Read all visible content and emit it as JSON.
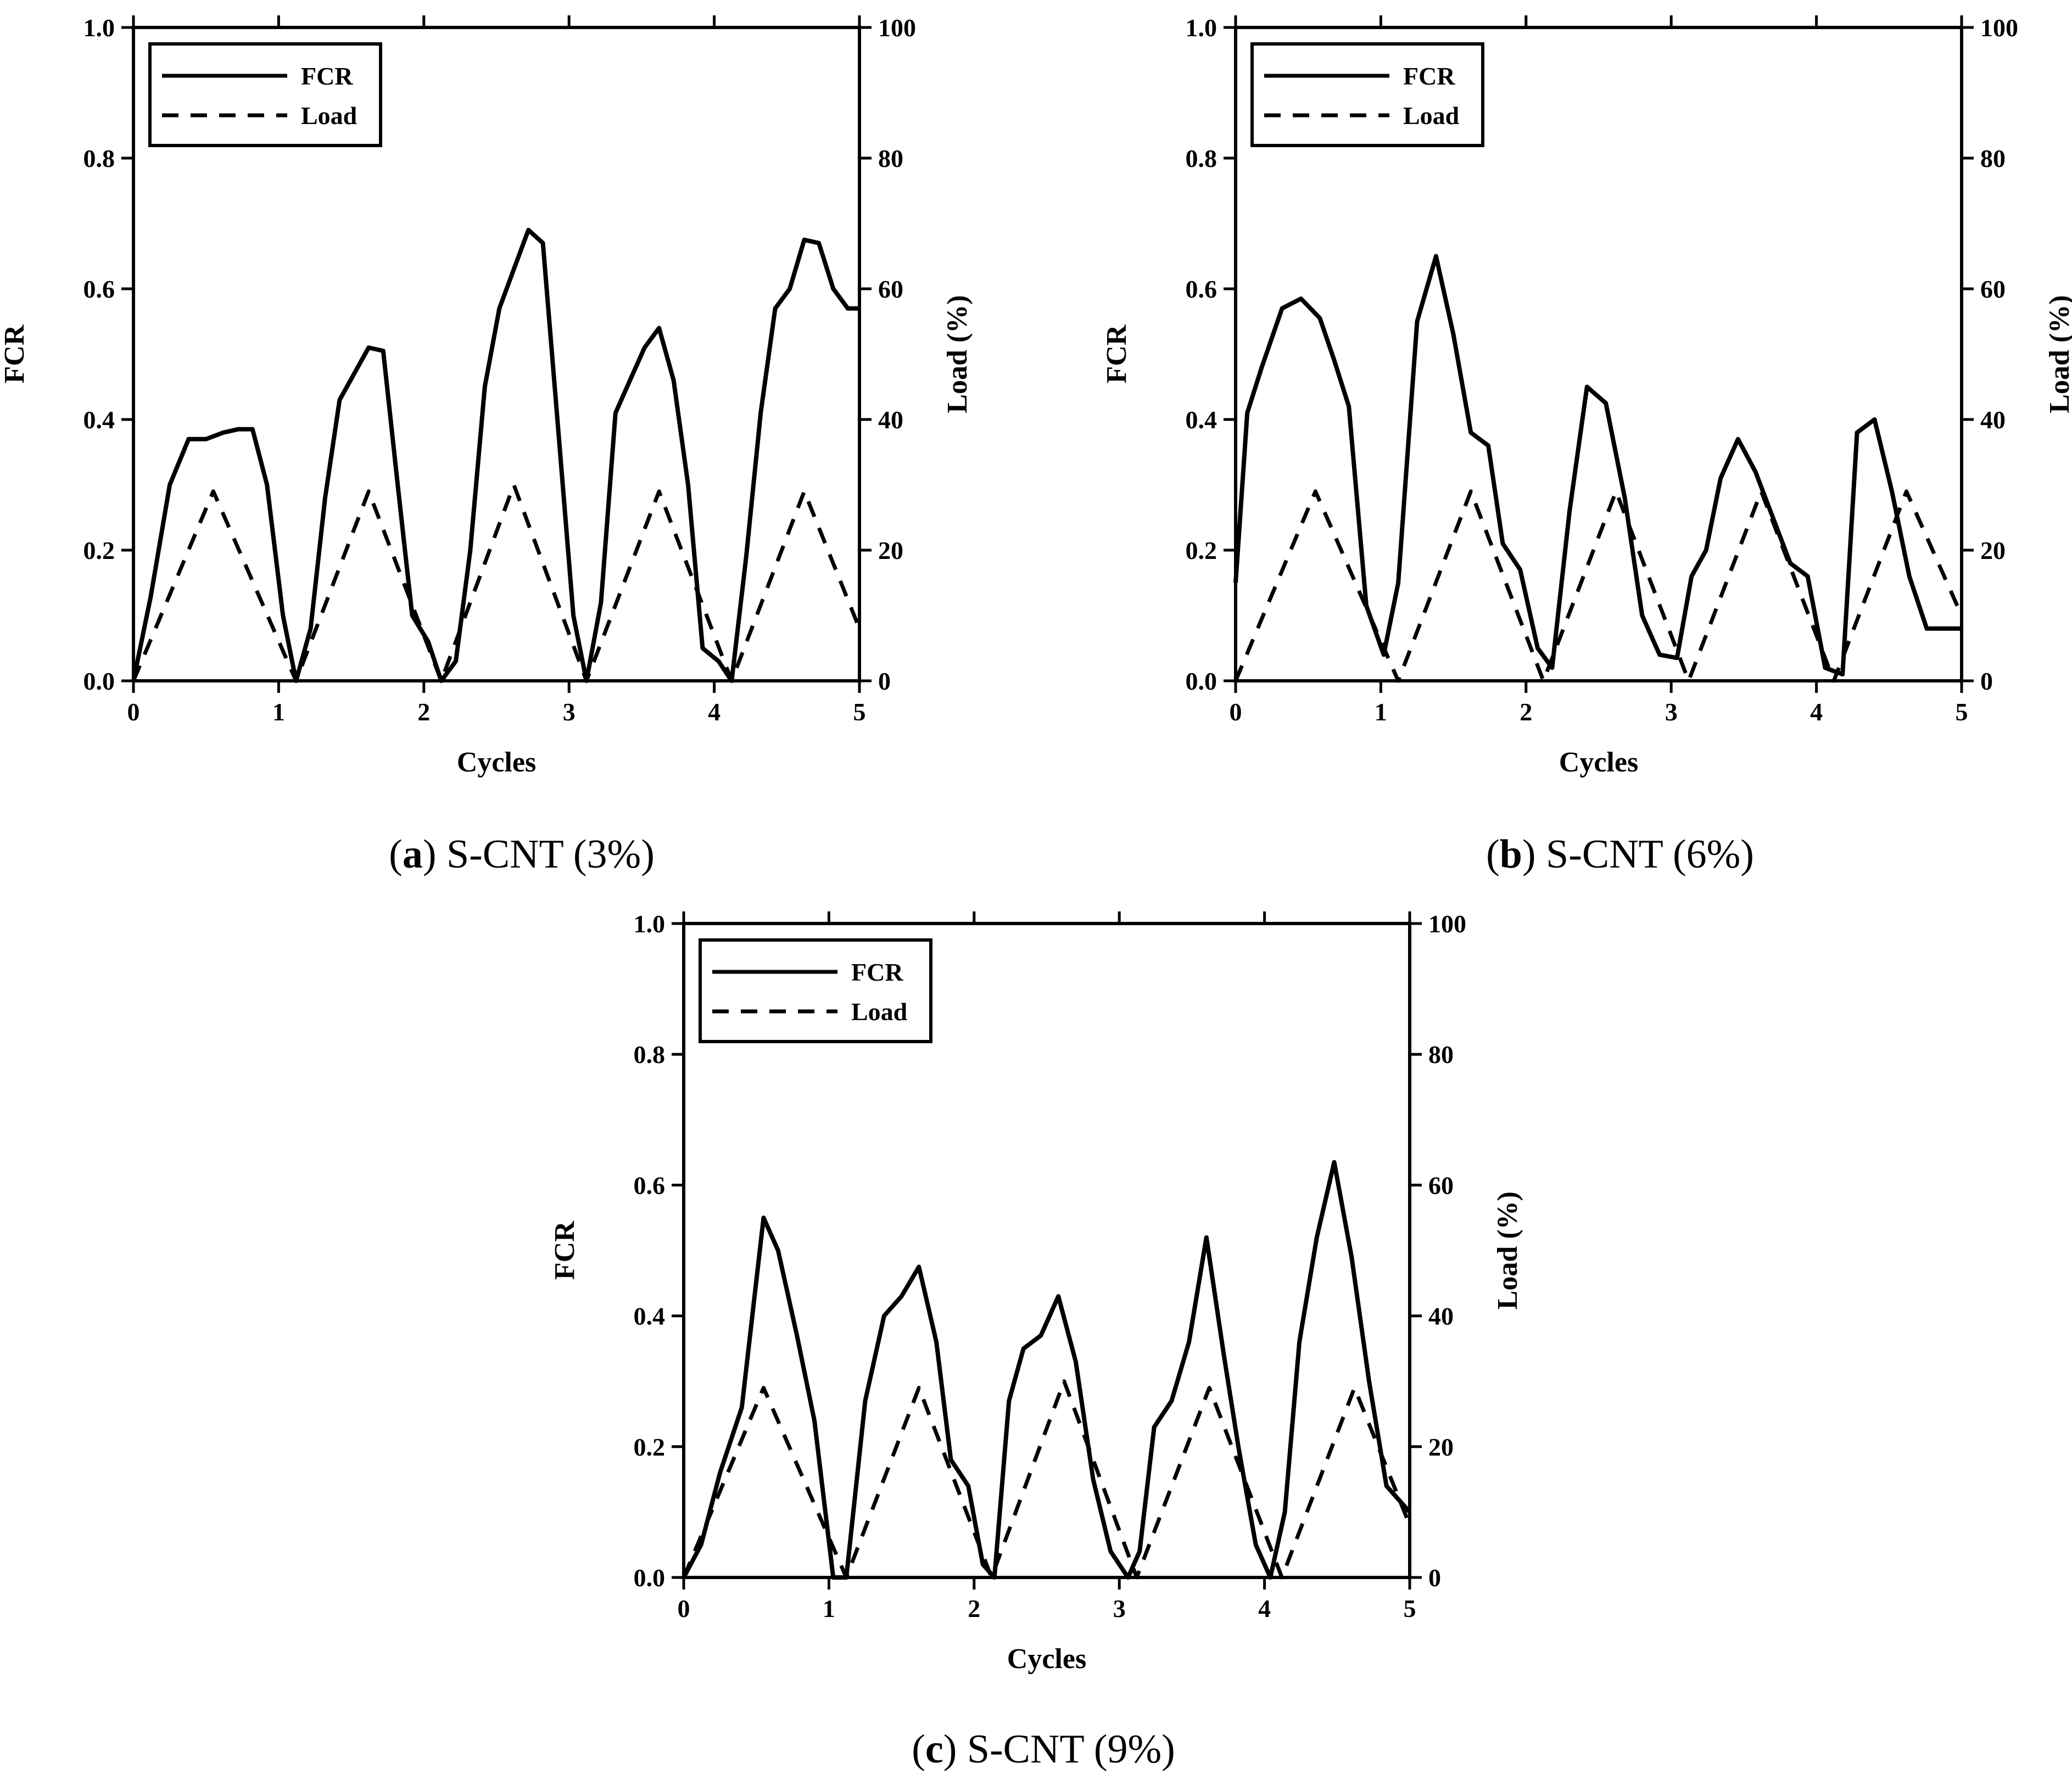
{
  "chart_data": [
    {
      "type": "line",
      "caption_letter": "a",
      "caption_text": "S-CNT (3%)",
      "xlabel": "Cycles",
      "ylabel": "FCR",
      "y2label": "Load (%)",
      "xlim": [
        0,
        5
      ],
      "ylim": [
        0,
        1.0
      ],
      "y2lim": [
        0,
        100
      ],
      "xticks": [
        "0",
        "1",
        "2",
        "3",
        "4",
        "5"
      ],
      "yticks": [
        "0.0",
        "0.2",
        "0.4",
        "0.6",
        "0.8",
        "1.0"
      ],
      "y2ticks": [
        "0",
        "20",
        "40",
        "60",
        "80",
        "100"
      ],
      "legend": [
        "FCR",
        "Load"
      ],
      "legend_position": "top-left",
      "series": [
        {
          "name": "FCR",
          "axis": "left",
          "style": "solid",
          "x": [
            0,
            0.12,
            0.25,
            0.38,
            0.5,
            0.62,
            0.72,
            0.82,
            0.92,
            1.03,
            1.12,
            1.22,
            1.32,
            1.42,
            1.52,
            1.62,
            1.72,
            1.82,
            1.92,
            2.03,
            2.12,
            2.22,
            2.32,
            2.42,
            2.52,
            2.62,
            2.72,
            2.82,
            2.92,
            3.03,
            3.12,
            3.22,
            3.32,
            3.42,
            3.52,
            3.62,
            3.72,
            3.82,
            3.92,
            4.03,
            4.12,
            4.22,
            4.32,
            4.42,
            4.52,
            4.62,
            4.72,
            4.82,
            4.92,
            5.0
          ],
          "y": [
            0,
            0.13,
            0.3,
            0.37,
            0.37,
            0.38,
            0.385,
            0.385,
            0.3,
            0.1,
            0.0,
            0.08,
            0.28,
            0.43,
            0.47,
            0.51,
            0.505,
            0.3,
            0.1,
            0.06,
            0.0,
            0.03,
            0.2,
            0.45,
            0.57,
            0.63,
            0.69,
            0.67,
            0.4,
            0.1,
            0.0,
            0.12,
            0.41,
            0.46,
            0.51,
            0.54,
            0.46,
            0.3,
            0.05,
            0.03,
            0.0,
            0.19,
            0.41,
            0.57,
            0.6,
            0.675,
            0.67,
            0.6,
            0.57,
            0.57
          ]
        },
        {
          "name": "Load",
          "axis": "right",
          "style": "dashed",
          "x": [
            0,
            0.55,
            1.12,
            1.62,
            2.12,
            2.62,
            3.12,
            3.62,
            4.12,
            4.62,
            5.0
          ],
          "y": [
            0,
            29,
            0,
            29,
            0,
            30,
            0,
            29,
            0,
            29,
            8
          ]
        }
      ]
    },
    {
      "type": "line",
      "caption_letter": "b",
      "caption_text": "S-CNT (6%)",
      "xlabel": "Cycles",
      "ylabel": "FCR",
      "y2label": "Load (%)",
      "xlim": [
        0,
        5
      ],
      "ylim": [
        0,
        1.0
      ],
      "y2lim": [
        0,
        100
      ],
      "xticks": [
        "0",
        "1",
        "2",
        "3",
        "4",
        "5"
      ],
      "yticks": [
        "0.0",
        "0.2",
        "0.4",
        "0.6",
        "0.8",
        "1.0"
      ],
      "y2ticks": [
        "0",
        "20",
        "40",
        "60",
        "80",
        "100"
      ],
      "legend": [
        "FCR",
        "Load"
      ],
      "legend_position": "top-left",
      "series": [
        {
          "name": "FCR",
          "axis": "left",
          "style": "solid",
          "x": [
            0,
            0.08,
            0.18,
            0.32,
            0.45,
            0.58,
            0.68,
            0.78,
            0.9,
            1.02,
            1.12,
            1.25,
            1.38,
            1.5,
            1.62,
            1.74,
            1.84,
            1.96,
            2.08,
            2.18,
            2.3,
            2.42,
            2.55,
            2.68,
            2.8,
            2.92,
            3.04,
            3.14,
            3.24,
            3.34,
            3.46,
            3.58,
            3.7,
            3.82,
            3.94,
            4.06,
            4.18,
            4.28,
            4.4,
            4.52,
            4.64,
            4.76,
            4.88,
            5.0
          ],
          "y": [
            0.15,
            0.41,
            0.48,
            0.57,
            0.585,
            0.555,
            0.49,
            0.42,
            0.115,
            0.04,
            0.15,
            0.55,
            0.65,
            0.53,
            0.38,
            0.36,
            0.21,
            0.17,
            0.05,
            0.02,
            0.26,
            0.45,
            0.425,
            0.28,
            0.1,
            0.04,
            0.035,
            0.16,
            0.2,
            0.31,
            0.37,
            0.32,
            0.25,
            0.18,
            0.16,
            0.02,
            0.01,
            0.38,
            0.4,
            0.29,
            0.16,
            0.08,
            0.08,
            0.08
          ]
        },
        {
          "name": "Load",
          "axis": "right",
          "style": "dashed",
          "x": [
            0,
            0.55,
            1.12,
            1.62,
            2.12,
            2.62,
            3.12,
            3.62,
            4.12,
            4.62,
            5.0
          ],
          "y": [
            0,
            29,
            0,
            29,
            0,
            29,
            0,
            29,
            0,
            29,
            10
          ]
        }
      ]
    },
    {
      "type": "line",
      "caption_letter": "c",
      "caption_text": "S-CNT (9%)",
      "xlabel": "Cycles",
      "ylabel": "FCR",
      "y2label": "Load (%)",
      "xlim": [
        0,
        5
      ],
      "ylim": [
        0,
        1.0
      ],
      "y2lim": [
        0,
        100
      ],
      "xticks": [
        "0",
        "1",
        "2",
        "3",
        "4",
        "5"
      ],
      "yticks": [
        "0.0",
        "0.2",
        "0.4",
        "0.6",
        "0.8",
        "1.0"
      ],
      "y2ticks": [
        "0",
        "20",
        "40",
        "60",
        "80",
        "100"
      ],
      "legend": [
        "FCR",
        "Load"
      ],
      "legend_position": "top-left",
      "series": [
        {
          "name": "FCR",
          "axis": "left",
          "style": "solid",
          "x": [
            0,
            0.12,
            0.25,
            0.4,
            0.55,
            0.65,
            0.78,
            0.9,
            1.03,
            1.12,
            1.25,
            1.38,
            1.5,
            1.62,
            1.74,
            1.84,
            1.96,
            2.06,
            2.14,
            2.24,
            2.34,
            2.46,
            2.58,
            2.7,
            2.82,
            2.94,
            3.06,
            3.14,
            3.24,
            3.36,
            3.48,
            3.6,
            3.72,
            3.82,
            3.94,
            4.04,
            4.14,
            4.24,
            4.36,
            4.48,
            4.6,
            4.72,
            4.84,
            5.0
          ],
          "y": [
            0,
            0.05,
            0.16,
            0.26,
            0.55,
            0.5,
            0.37,
            0.24,
            0.0,
            0.0,
            0.27,
            0.4,
            0.43,
            0.475,
            0.36,
            0.18,
            0.14,
            0.02,
            0.0,
            0.27,
            0.35,
            0.37,
            0.43,
            0.33,
            0.15,
            0.04,
            0.0,
            0.04,
            0.23,
            0.27,
            0.36,
            0.52,
            0.34,
            0.2,
            0.05,
            0.0,
            0.1,
            0.36,
            0.52,
            0.635,
            0.49,
            0.3,
            0.14,
            0.1
          ]
        },
        {
          "name": "Load",
          "axis": "right",
          "style": "dashed",
          "x": [
            0,
            0.55,
            1.12,
            1.62,
            2.12,
            2.62,
            3.12,
            3.62,
            4.12,
            4.62,
            5.0
          ],
          "y": [
            0,
            29,
            0,
            29,
            0,
            30,
            0,
            29,
            0,
            29,
            8
          ]
        }
      ]
    }
  ]
}
